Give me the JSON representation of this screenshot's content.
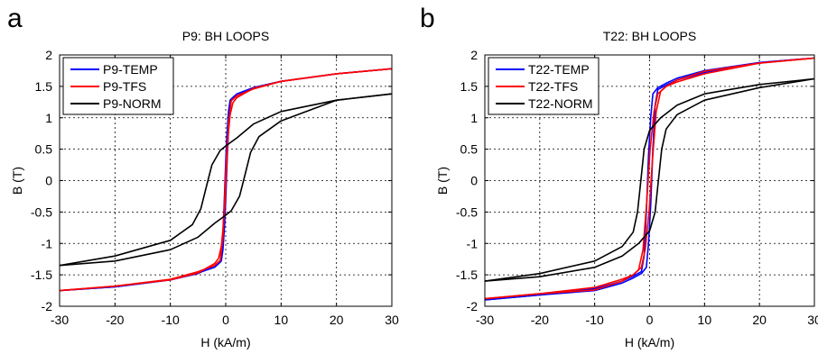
{
  "chart_data": [
    {
      "type": "line",
      "panel_label": "a",
      "title": "P9: BH LOOPS",
      "xlabel": "H (kA/m)",
      "ylabel": "B (T)",
      "xlim": [
        -30,
        30
      ],
      "ylim": [
        -2,
        2
      ],
      "xticks": [
        -30,
        -20,
        -10,
        0,
        10,
        20,
        30
      ],
      "yticks": [
        -2,
        -1.5,
        -1,
        -0.5,
        0,
        0.5,
        1,
        1.5,
        2
      ],
      "grid": true,
      "legend": "top-left",
      "series": [
        {
          "name": "P9-TEMP",
          "color": "#0000ff",
          "upper": [
            [
              -30,
              -1.75
            ],
            [
              -20,
              -1.69
            ],
            [
              -10,
              -1.58
            ],
            [
              -5,
              -1.47
            ],
            [
              -2,
              -1.38
            ],
            [
              -1,
              -1.3
            ],
            [
              -0.6,
              -1.0
            ],
            [
              -0.3,
              -0.4
            ],
            [
              0,
              0.3
            ],
            [
              0.2,
              0.7
            ],
            [
              0.5,
              1.1
            ],
            [
              0.8,
              1.28
            ],
            [
              2,
              1.35
            ],
            [
              5,
              1.48
            ],
            [
              10,
              1.58
            ],
            [
              20,
              1.7
            ],
            [
              30,
              1.78
            ]
          ],
          "lower": [
            [
              30,
              1.78
            ],
            [
              20,
              1.7
            ],
            [
              10,
              1.58
            ],
            [
              5,
              1.48
            ],
            [
              2,
              1.38
            ],
            [
              1,
              1.3
            ],
            [
              0.6,
              1.0
            ],
            [
              0.3,
              0.4
            ],
            [
              0,
              -0.3
            ],
            [
              -0.2,
              -0.7
            ],
            [
              -0.5,
              -1.1
            ],
            [
              -0.8,
              -1.28
            ],
            [
              -2,
              -1.35
            ],
            [
              -5,
              -1.48
            ],
            [
              -10,
              -1.58
            ],
            [
              -20,
              -1.69
            ],
            [
              -30,
              -1.75
            ]
          ]
        },
        {
          "name": "P9-TFS",
          "color": "#ff0000",
          "upper": [
            [
              -30,
              -1.75
            ],
            [
              -20,
              -1.68
            ],
            [
              -10,
              -1.57
            ],
            [
              -5,
              -1.45
            ],
            [
              -2,
              -1.35
            ],
            [
              -1,
              -1.27
            ],
            [
              -0.5,
              -0.9
            ],
            [
              -0.2,
              -0.3
            ],
            [
              0.1,
              0.3
            ],
            [
              0.4,
              0.7
            ],
            [
              0.8,
              1.05
            ],
            [
              1.3,
              1.24
            ],
            [
              2,
              1.32
            ],
            [
              5,
              1.47
            ],
            [
              10,
              1.58
            ],
            [
              20,
              1.7
            ],
            [
              30,
              1.78
            ]
          ],
          "lower": [
            [
              30,
              1.78
            ],
            [
              20,
              1.7
            ],
            [
              10,
              1.58
            ],
            [
              5,
              1.46
            ],
            [
              2,
              1.35
            ],
            [
              1,
              1.27
            ],
            [
              0.5,
              0.9
            ],
            [
              0.2,
              0.3
            ],
            [
              -0.1,
              -0.3
            ],
            [
              -0.4,
              -0.7
            ],
            [
              -0.8,
              -1.05
            ],
            [
              -1.3,
              -1.24
            ],
            [
              -2,
              -1.32
            ],
            [
              -5,
              -1.47
            ],
            [
              -10,
              -1.58
            ],
            [
              -20,
              -1.68
            ],
            [
              -30,
              -1.75
            ]
          ]
        },
        {
          "name": "P9-NORM",
          "color": "#000000",
          "upper": [
            [
              -30,
              -1.35
            ],
            [
              -20,
              -1.2
            ],
            [
              -10,
              -0.95
            ],
            [
              -6,
              -0.7
            ],
            [
              -4.5,
              -0.45
            ],
            [
              -3.5,
              -0.1
            ],
            [
              -2.5,
              0.25
            ],
            [
              -1,
              0.48
            ],
            [
              0,
              0.55
            ],
            [
              2,
              0.68
            ],
            [
              5,
              0.9
            ],
            [
              10,
              1.1
            ],
            [
              20,
              1.28
            ],
            [
              30,
              1.38
            ]
          ],
          "lower": [
            [
              30,
              1.38
            ],
            [
              20,
              1.28
            ],
            [
              10,
              0.95
            ],
            [
              6,
              0.7
            ],
            [
              4.5,
              0.45
            ],
            [
              3.5,
              0.1
            ],
            [
              2.5,
              -0.25
            ],
            [
              1,
              -0.48
            ],
            [
              0,
              -0.55
            ],
            [
              -2,
              -0.68
            ],
            [
              -5,
              -0.9
            ],
            [
              -10,
              -1.1
            ],
            [
              -20,
              -1.28
            ],
            [
              -30,
              -1.35
            ]
          ]
        }
      ]
    },
    {
      "type": "line",
      "panel_label": "b",
      "title": "T22: BH LOOPS",
      "xlabel": "H (kA/m)",
      "ylabel": "B (T)",
      "xlim": [
        -30,
        30
      ],
      "ylim": [
        -2,
        2
      ],
      "xticks": [
        -30,
        -20,
        -10,
        0,
        10,
        20,
        30
      ],
      "yticks": [
        -2,
        -1.5,
        -1,
        -0.5,
        0,
        0.5,
        1,
        1.5,
        2
      ],
      "grid": true,
      "legend": "top-left",
      "series": [
        {
          "name": "T22-TEMP",
          "color": "#0000ff",
          "upper": [
            [
              -30,
              -1.9
            ],
            [
              -20,
              -1.82
            ],
            [
              -10,
              -1.72
            ],
            [
              -5,
              -1.6
            ],
            [
              -3,
              -1.52
            ],
            [
              -1.5,
              -1.45
            ],
            [
              -1,
              -1.2
            ],
            [
              -0.6,
              -0.5
            ],
            [
              -0.2,
              0.4
            ],
            [
              0.2,
              1.0
            ],
            [
              0.6,
              1.38
            ],
            [
              1.5,
              1.48
            ],
            [
              3,
              1.55
            ],
            [
              5,
              1.63
            ],
            [
              10,
              1.75
            ],
            [
              20,
              1.88
            ],
            [
              30,
              1.95
            ]
          ],
          "lower": [
            [
              30,
              1.95
            ],
            [
              20,
              1.88
            ],
            [
              10,
              1.72
            ],
            [
              5,
              1.6
            ],
            [
              3,
              1.52
            ],
            [
              1.5,
              1.45
            ],
            [
              1,
              1.2
            ],
            [
              0.6,
              0.5
            ],
            [
              0.2,
              -0.4
            ],
            [
              -0.2,
              -1.0
            ],
            [
              -0.6,
              -1.38
            ],
            [
              -1.5,
              -1.48
            ],
            [
              -3,
              -1.55
            ],
            [
              -5,
              -1.63
            ],
            [
              -10,
              -1.75
            ],
            [
              -20,
              -1.82
            ],
            [
              -30,
              -1.9
            ]
          ]
        },
        {
          "name": "T22-TFS",
          "color": "#ff0000",
          "upper": [
            [
              -30,
              -1.88
            ],
            [
              -20,
              -1.8
            ],
            [
              -10,
              -1.7
            ],
            [
              -5,
              -1.57
            ],
            [
              -3,
              -1.5
            ],
            [
              -2,
              -1.42
            ],
            [
              -1.2,
              -1.1
            ],
            [
              -0.5,
              -0.3
            ],
            [
              0.1,
              0.5
            ],
            [
              0.8,
              1.1
            ],
            [
              1.5,
              1.38
            ],
            [
              3,
              1.5
            ],
            [
              5,
              1.6
            ],
            [
              10,
              1.74
            ],
            [
              20,
              1.87
            ],
            [
              30,
              1.95
            ]
          ],
          "lower": [
            [
              30,
              1.95
            ],
            [
              20,
              1.87
            ],
            [
              10,
              1.7
            ],
            [
              5,
              1.57
            ],
            [
              3,
              1.5
            ],
            [
              2,
              1.42
            ],
            [
              1.2,
              1.1
            ],
            [
              0.5,
              0.3
            ],
            [
              -0.1,
              -0.5
            ],
            [
              -0.8,
              -1.1
            ],
            [
              -1.5,
              -1.38
            ],
            [
              -3,
              -1.5
            ],
            [
              -5,
              -1.6
            ],
            [
              -10,
              -1.74
            ],
            [
              -20,
              -1.8
            ],
            [
              -30,
              -1.88
            ]
          ]
        },
        {
          "name": "T22-NORM",
          "color": "#000000",
          "upper": [
            [
              -30,
              -1.6
            ],
            [
              -20,
              -1.48
            ],
            [
              -10,
              -1.28
            ],
            [
              -5,
              -1.05
            ],
            [
              -3,
              -0.82
            ],
            [
              -2.2,
              -0.5
            ],
            [
              -1.6,
              0.0
            ],
            [
              -1,
              0.5
            ],
            [
              0,
              0.8
            ],
            [
              2,
              1.0
            ],
            [
              5,
              1.2
            ],
            [
              10,
              1.38
            ],
            [
              20,
              1.53
            ],
            [
              30,
              1.62
            ]
          ],
          "lower": [
            [
              30,
              1.62
            ],
            [
              20,
              1.48
            ],
            [
              10,
              1.28
            ],
            [
              5,
              1.05
            ],
            [
              3,
              0.82
            ],
            [
              2.2,
              0.5
            ],
            [
              1.6,
              0.0
            ],
            [
              1,
              -0.5
            ],
            [
              0,
              -0.8
            ],
            [
              -2,
              -1.0
            ],
            [
              -5,
              -1.2
            ],
            [
              -10,
              -1.38
            ],
            [
              -20,
              -1.53
            ],
            [
              -30,
              -1.6
            ]
          ]
        }
      ]
    }
  ]
}
